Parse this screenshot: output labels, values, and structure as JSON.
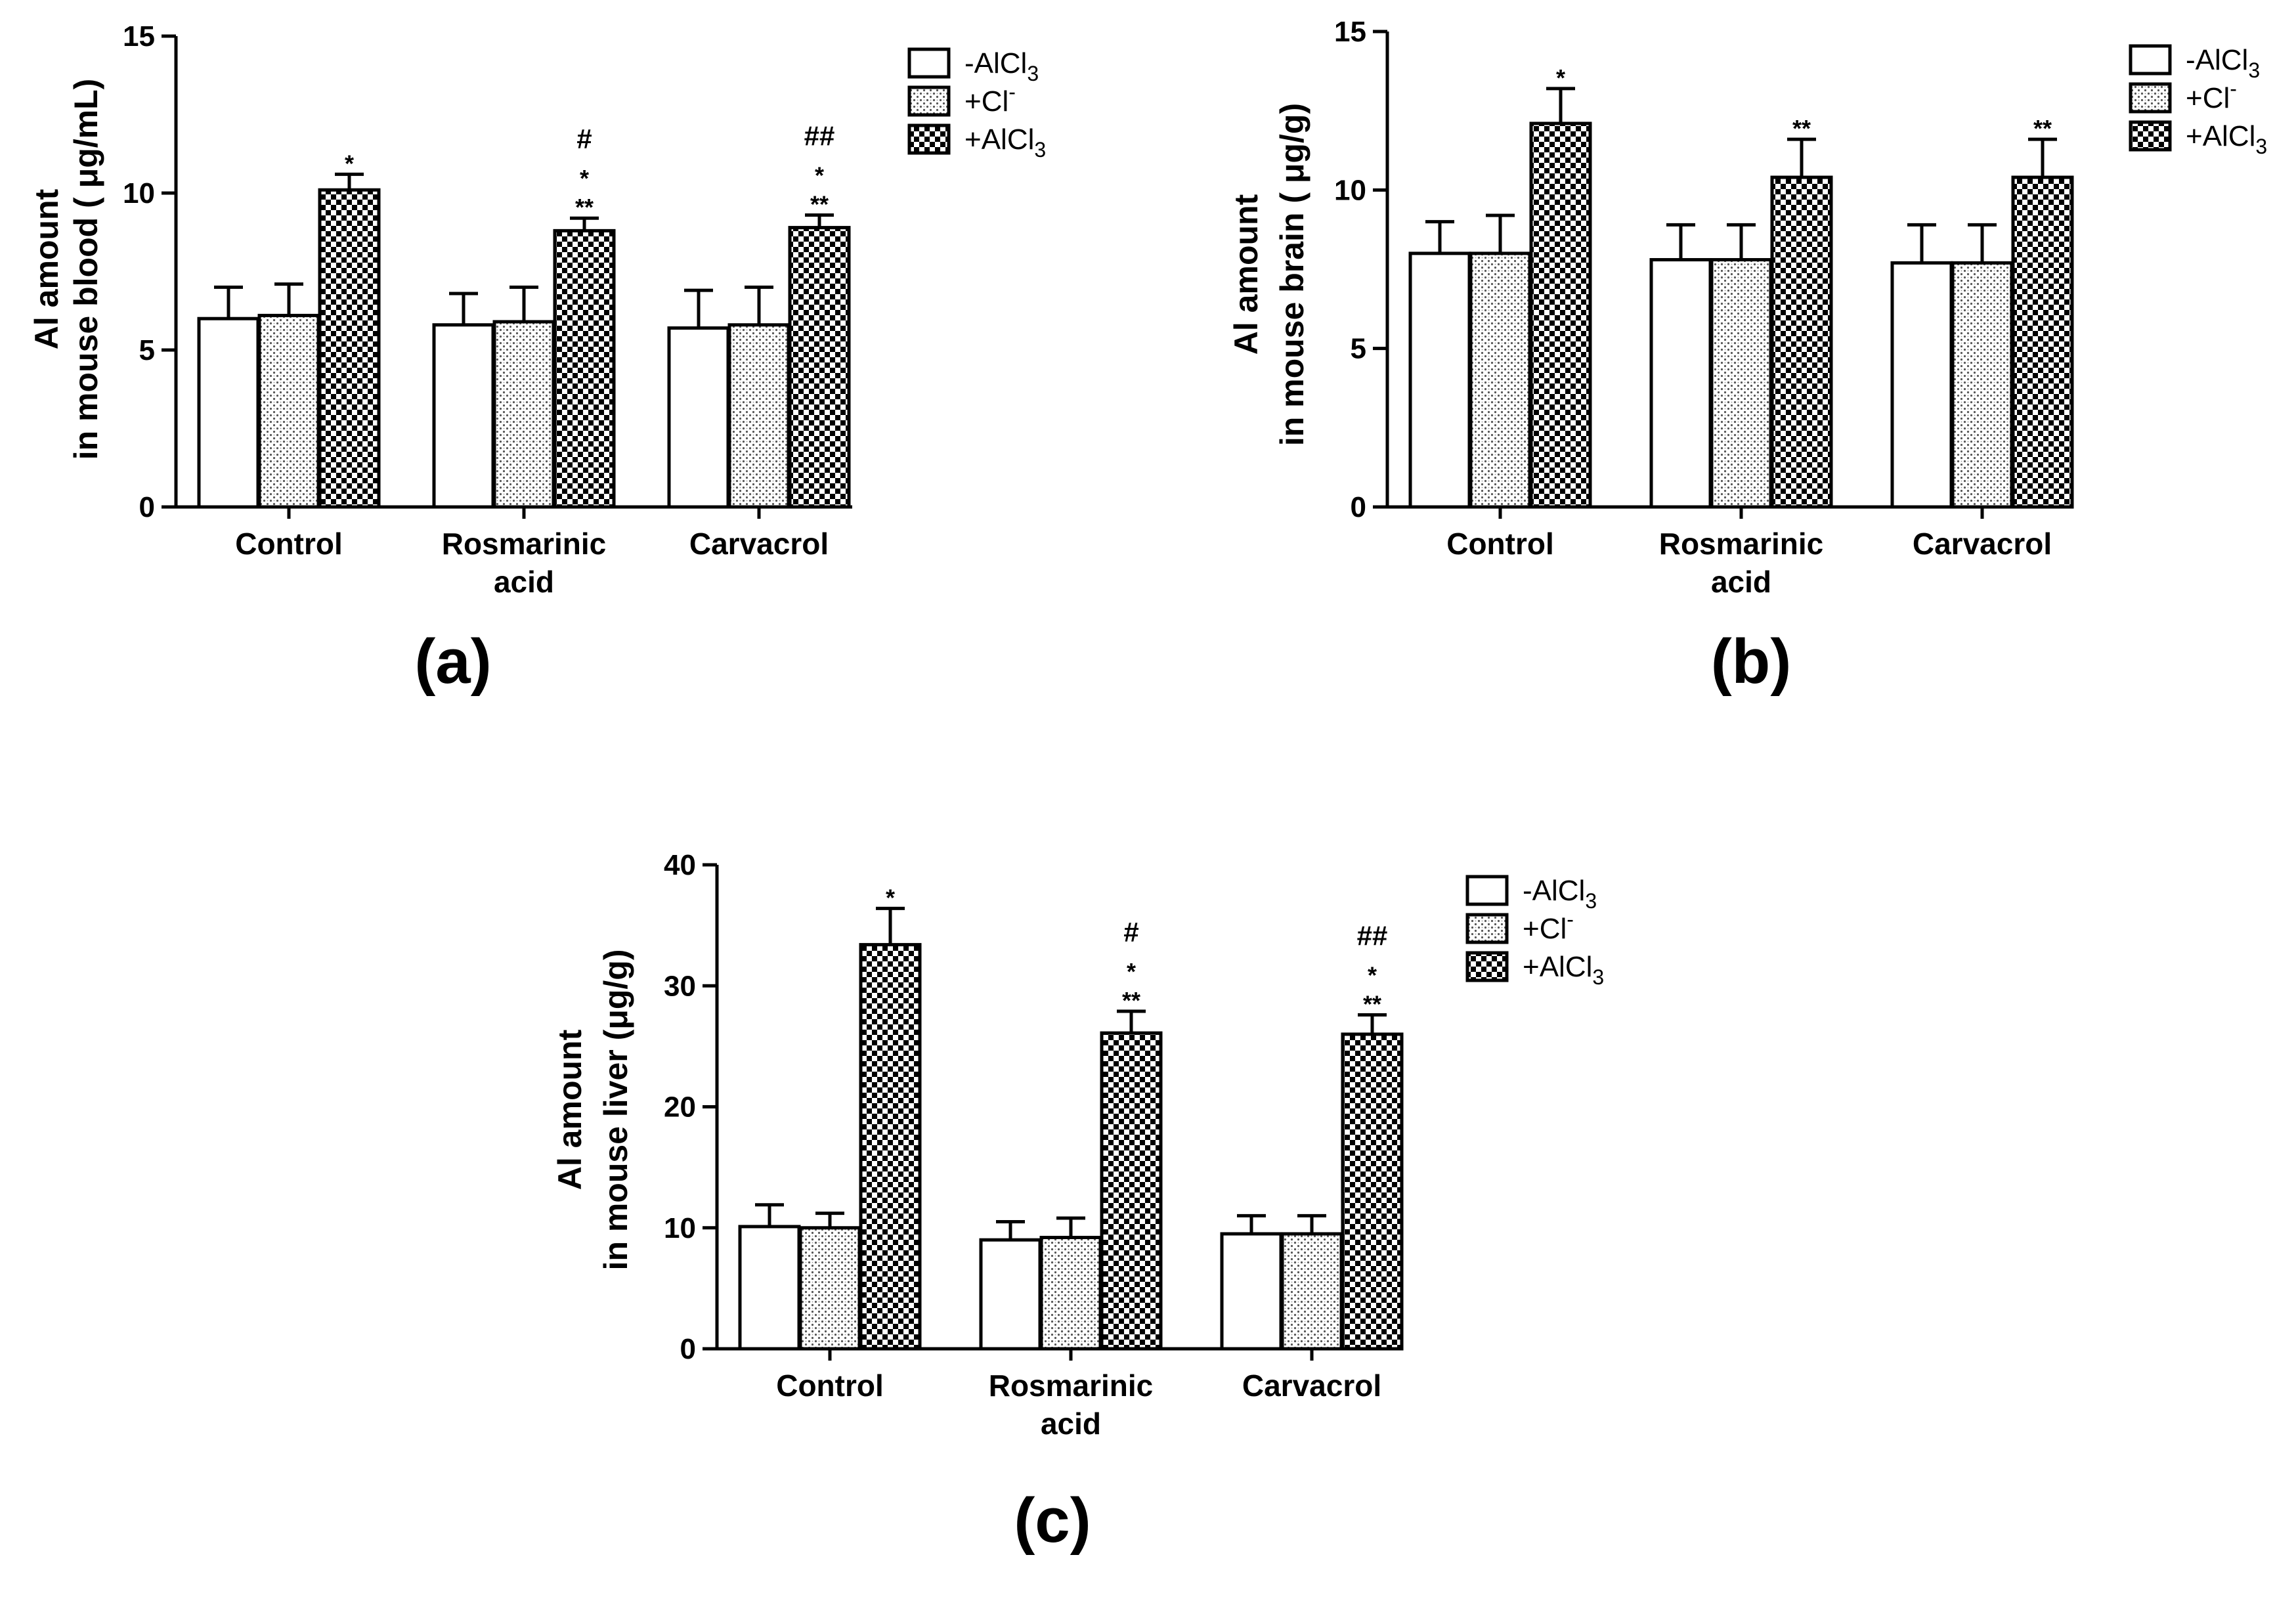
{
  "legend": [
    {
      "pattern": "white",
      "base": "-AlCl",
      "sub": "3",
      "sup": ""
    },
    {
      "pattern": "dots",
      "base": "+Cl",
      "sub": "",
      "sup": "-"
    },
    {
      "pattern": "checker",
      "base": "+AlCl",
      "sub": "3",
      "sup": ""
    }
  ],
  "colors": {
    "ink": "#000000",
    "bar_white": "#ffffff",
    "dots_bg": "#ffffff",
    "dots_fg": "#555555"
  },
  "chart_data": [
    {
      "type": "bar",
      "panel_label": "(a)",
      "ylabel_line1": "Al amount",
      "ylabel_line2": "in mouse blood ( μg/mL)",
      "ylim": [
        0,
        15
      ],
      "yticks": [
        0,
        5,
        10,
        15
      ],
      "categories": [
        [
          "Control"
        ],
        [
          "Rosmarinic",
          "acid"
        ],
        [
          "Carvacrol"
        ]
      ],
      "series": [
        {
          "name": "-AlCl3",
          "values": [
            6.0,
            5.8,
            5.7
          ],
          "errors": [
            1.0,
            1.0,
            1.2
          ]
        },
        {
          "name": "+Cl-",
          "values": [
            6.1,
            5.9,
            5.8
          ],
          "errors": [
            1.0,
            1.1,
            1.2
          ]
        },
        {
          "name": "+AlCl3",
          "values": [
            10.1,
            8.8,
            8.9
          ],
          "errors": [
            0.5,
            0.4,
            0.4
          ]
        }
      ],
      "annotations": [
        [
          [
            "*"
          ]
        ],
        [
          [
            "#",
            "*",
            "**"
          ]
        ],
        [
          [
            "##",
            "*",
            "**"
          ]
        ]
      ]
    },
    {
      "type": "bar",
      "panel_label": "(b)",
      "ylabel_line1": "Al amount",
      "ylabel_line2": "in mouse brain ( μg/g)",
      "ylim": [
        0,
        15
      ],
      "yticks": [
        0,
        5,
        10,
        15
      ],
      "categories": [
        [
          "Control"
        ],
        [
          "Rosmarinic",
          "acid"
        ],
        [
          "Carvacrol"
        ]
      ],
      "series": [
        {
          "name": "-AlCl3",
          "values": [
            8.0,
            7.8,
            7.7
          ],
          "errors": [
            1.0,
            1.1,
            1.2
          ]
        },
        {
          "name": "+Cl-",
          "values": [
            8.0,
            7.8,
            7.7
          ],
          "errors": [
            1.2,
            1.1,
            1.2
          ]
        },
        {
          "name": "+AlCl3",
          "values": [
            12.1,
            10.4,
            10.4
          ],
          "errors": [
            1.1,
            1.2,
            1.2
          ]
        }
      ],
      "annotations": [
        [
          [
            "*"
          ]
        ],
        [
          [
            "**"
          ]
        ],
        [
          [
            "**"
          ]
        ]
      ]
    },
    {
      "type": "bar",
      "panel_label": "(c)",
      "ylabel_line1": "Al amount",
      "ylabel_line2": "in mouse liver (μg/g)",
      "ylim": [
        0,
        40
      ],
      "yticks": [
        0,
        10,
        20,
        30,
        40
      ],
      "categories": [
        [
          "Control"
        ],
        [
          "Rosmarinic",
          "acid"
        ],
        [
          "Carvacrol"
        ]
      ],
      "series": [
        {
          "name": "-AlCl3",
          "values": [
            10.1,
            9.0,
            9.5
          ],
          "errors": [
            1.8,
            1.5,
            1.5
          ]
        },
        {
          "name": "+Cl-",
          "values": [
            10.0,
            9.2,
            9.5
          ],
          "errors": [
            1.2,
            1.6,
            1.5
          ]
        },
        {
          "name": "+AlCl3",
          "values": [
            33.4,
            26.1,
            26.0
          ],
          "errors": [
            3.0,
            1.8,
            1.6
          ]
        }
      ],
      "annotations": [
        [
          [
            "*"
          ]
        ],
        [
          [
            "#",
            "*",
            "**"
          ]
        ],
        [
          [
            "##",
            "*",
            "**"
          ]
        ]
      ]
    }
  ]
}
